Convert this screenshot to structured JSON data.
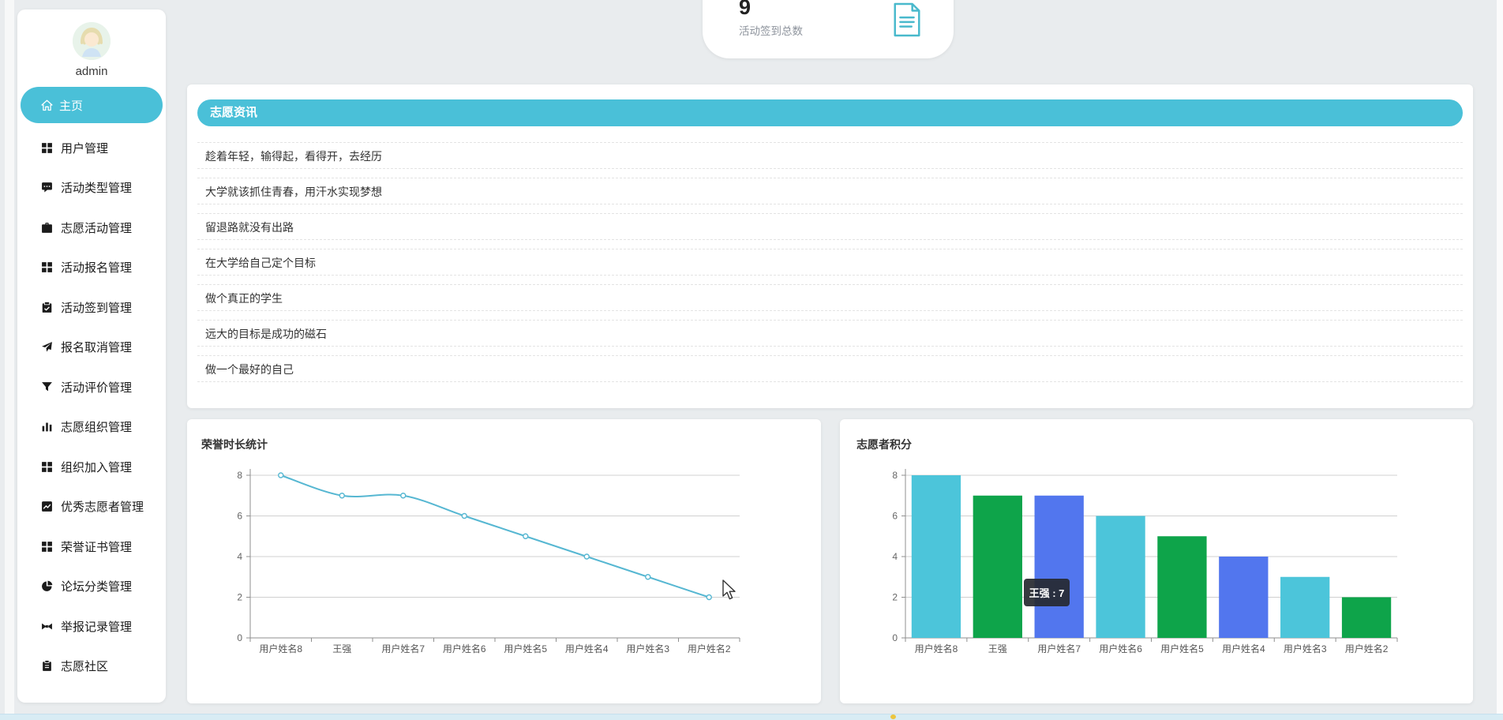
{
  "colors": {
    "accent": "#4ac0d8",
    "line": "#56b7d2",
    "bar_palette": [
      "#4cc5da",
      "#0ea44a",
      "#5276ee"
    ],
    "tooltip_bg": "#262930"
  },
  "sidebar": {
    "username": "admin",
    "items": [
      {
        "label": "主页",
        "icon": "home-icon",
        "active": true
      },
      {
        "label": "用户管理",
        "icon": "grid-icon"
      },
      {
        "label": "活动类型管理",
        "icon": "comment-icon"
      },
      {
        "label": "志愿活动管理",
        "icon": "briefcase-icon"
      },
      {
        "label": "活动报名管理",
        "icon": "grid-icon"
      },
      {
        "label": "活动签到管理",
        "icon": "clipboard-check-icon"
      },
      {
        "label": "报名取消管理",
        "icon": "paper-plane-icon"
      },
      {
        "label": "活动评价管理",
        "icon": "filter-icon"
      },
      {
        "label": "志愿组织管理",
        "icon": "bar-chart-icon"
      },
      {
        "label": "组织加入管理",
        "icon": "grid-icon"
      },
      {
        "label": "优秀志愿者管理",
        "icon": "trend-chart-icon"
      },
      {
        "label": "荣誉证书管理",
        "icon": "grid-icon"
      },
      {
        "label": "论坛分类管理",
        "icon": "pie-chart-icon"
      },
      {
        "label": "举报记录管理",
        "icon": "report-icon"
      },
      {
        "label": "志愿社区",
        "icon": "clipboard-icon"
      }
    ]
  },
  "stat_card": {
    "value": "9",
    "label": "活动签到总数",
    "icon": "document-icon"
  },
  "news": {
    "header": "志愿资讯",
    "items": [
      "趁着年轻，输得起，看得开，去经历",
      "大学就该抓住青春，用汗水实现梦想",
      "留退路就没有出路",
      "在大学给自己定个目标",
      "做个真正的学生",
      "远大的目标是成功的磁石",
      "做一个最好的自己"
    ]
  },
  "chart_data": [
    {
      "type": "line",
      "title": "荣誉时长统计",
      "categories": [
        "用户姓名8",
        "王强",
        "用户姓名7",
        "用户姓名6",
        "用户姓名5",
        "用户姓名4",
        "用户姓名3",
        "用户姓名2"
      ],
      "values": [
        8,
        7,
        7,
        6,
        5,
        4,
        3,
        2
      ],
      "xlabel": "",
      "ylabel": "",
      "ylim": [
        0,
        8
      ],
      "yticks": [
        0,
        2,
        4,
        6,
        8
      ],
      "grid": true,
      "smooth": true,
      "color": "#56b7d2",
      "legend": "none"
    },
    {
      "type": "bar",
      "title": "志愿者积分",
      "categories": [
        "用户姓名8",
        "王强",
        "用户姓名7",
        "用户姓名6",
        "用户姓名5",
        "用户姓名4",
        "用户姓名3",
        "用户姓名2"
      ],
      "values": [
        8,
        7,
        7,
        6,
        5,
        4,
        3,
        2
      ],
      "xlabel": "",
      "ylabel": "",
      "ylim": [
        0,
        8
      ],
      "yticks": [
        0,
        2,
        4,
        6,
        8
      ],
      "grid": true,
      "palette": [
        "#4cc5da",
        "#0ea44a",
        "#5276ee"
      ],
      "legend": "none",
      "tooltip": {
        "text": "王强 : 7"
      }
    }
  ]
}
